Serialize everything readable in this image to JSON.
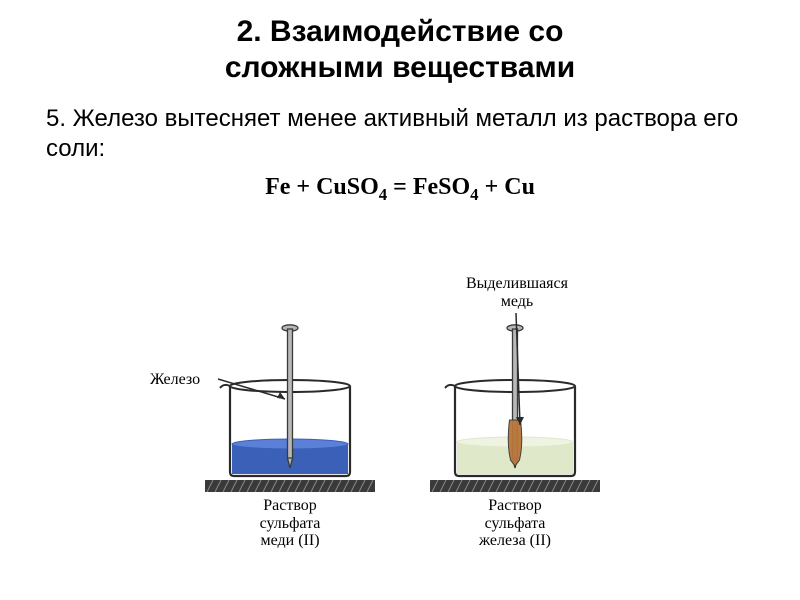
{
  "title_line1": "2. Взаимодействие со",
  "title_line2": "сложными веществами",
  "title_fontsize": 30,
  "title_color": "#000000",
  "subtitle": "5. Железо вытесняет менее активный металл из раствора его соли:",
  "subtitle_fontsize": 24,
  "equation": {
    "parts": [
      "Fe + CuSO",
      "4",
      " = FeSO",
      "4",
      " + Cu"
    ],
    "fontsize": 24,
    "color": "#000000"
  },
  "diagram": {
    "label_fontsize": 16,
    "labels": {
      "iron": "Железо",
      "copper_released_line1": "Выделившаяся",
      "copper_released_line2": "медь",
      "caption_left_line1": "Раствор",
      "caption_left_line2": "сульфата",
      "caption_left_line3": "меди (II)",
      "caption_right_line1": "Раствор",
      "caption_right_line2": "сульфата",
      "caption_right_line3": "железа (II)"
    },
    "colors": {
      "beaker_outline": "#2a2a2a",
      "table_fill": "#3a3a3a",
      "nail_fill": "#b8b8b8",
      "nail_outline": "#3a3a3a",
      "copper_fill": "#b8763a",
      "liquid_left_fill": "#3a60b8",
      "liquid_left_surface": "#5a80d8",
      "liquid_right_fill": "#dfe8c8",
      "liquid_right_surface": "#eff4e2",
      "arrow_color": "#2a2a2a",
      "label_color": "#000000"
    },
    "geometry": {
      "beaker_width": 120,
      "beaker_height": 90,
      "liquid_left_height": 32,
      "liquid_right_height": 34,
      "nail_length": 140,
      "nail_width": 5
    }
  }
}
